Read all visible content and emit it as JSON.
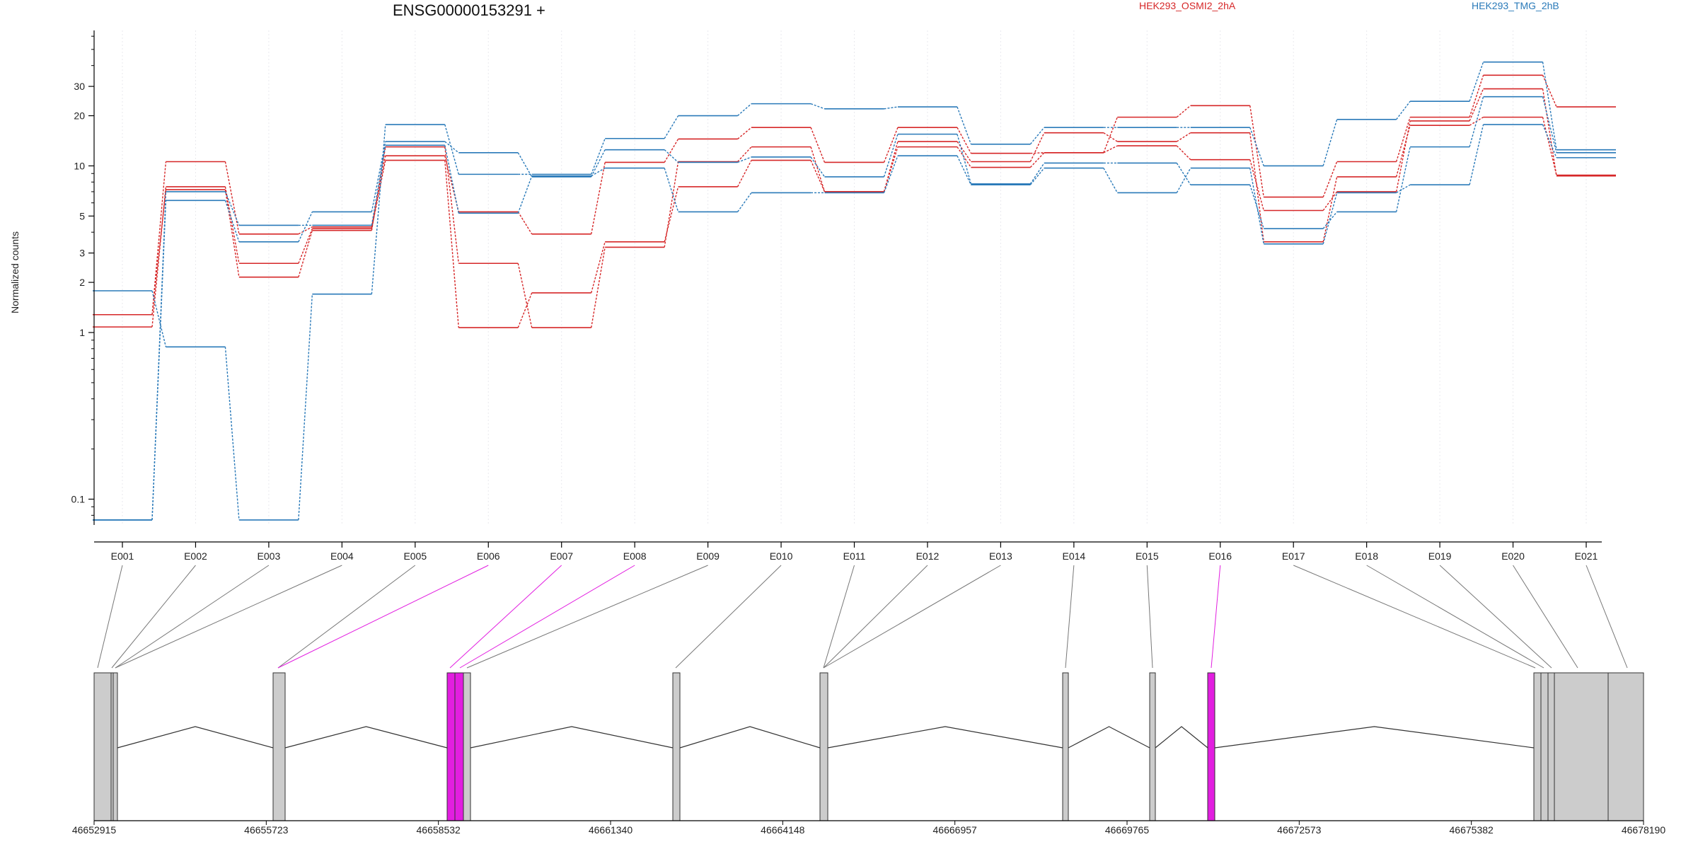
{
  "chart_data": {
    "type": "line",
    "title": "ENSG00000153291 +",
    "ylabel": "Normalized counts",
    "yscale": "log",
    "ylim": [
      0.07,
      65
    ],
    "yticks": [
      0.1,
      1,
      2,
      3,
      5,
      10,
      20,
      30
    ],
    "ytick_labels": [
      "0.1",
      "1",
      "2",
      "3",
      "5",
      "10",
      "20",
      "30"
    ],
    "categories": [
      "E001",
      "E002",
      "E003",
      "E004",
      "E005",
      "E006",
      "E007",
      "E008",
      "E009",
      "E010",
      "E011",
      "E012",
      "E013",
      "E014",
      "E015",
      "E016",
      "E017",
      "E018",
      "E019",
      "E020",
      "E021"
    ],
    "legend": [
      {
        "label": "HEK293_OSMI2_2hA",
        "color": "#d62728"
      },
      {
        "label": "HEK293_TMG_2hB",
        "color": "#2a7ab9"
      }
    ],
    "series": [
      {
        "group": "HEK293_OSMI2_2hA",
        "color": "#d62728",
        "values": [
          1.28,
          10.6,
          3.9,
          4.3,
          11.5,
          5.3,
          3.9,
          10.5,
          14.5,
          17.0,
          10.5,
          17.0,
          11.9,
          12.0,
          19.6,
          23.0,
          6.5,
          10.6,
          19.6,
          35.0,
          22.6
        ]
      },
      {
        "group": "HEK293_OSMI2_2hA",
        "color": "#d62728",
        "values": [
          1.08,
          7.5,
          2.6,
          4.2,
          10.8,
          1.07,
          1.73,
          3.5,
          7.5,
          10.8,
          7.0,
          14.0,
          10.6,
          15.8,
          14.0,
          15.8,
          3.5,
          8.6,
          17.5,
          19.6,
          8.8
        ]
      },
      {
        "group": "HEK293_OSMI2_2hA",
        "color": "#d62728",
        "values": [
          1.28,
          7.2,
          2.15,
          4.1,
          13.0,
          2.6,
          1.07,
          3.25,
          10.6,
          13.0,
          7.0,
          13.0,
          9.8,
          12.0,
          13.2,
          10.9,
          5.4,
          7.0,
          18.6,
          29.0,
          8.7
        ]
      },
      {
        "group": "HEK293_TMG_2hB",
        "color": "#2a7ab9",
        "values": [
          1.78,
          0.82,
          0.075,
          1.7,
          17.7,
          8.9,
          8.9,
          14.6,
          20.0,
          23.6,
          22.0,
          22.6,
          13.5,
          17.0,
          17.0,
          17.0,
          10.0,
          19.0,
          24.4,
          42.0,
          12.5
        ]
      },
      {
        "group": "HEK293_TMG_2hB",
        "color": "#2a7ab9",
        "values": [
          0.075,
          6.2,
          3.5,
          5.3,
          14.0,
          12.0,
          8.6,
          12.5,
          10.5,
          11.3,
          8.6,
          15.5,
          7.8,
          10.4,
          10.4,
          7.7,
          4.2,
          5.3,
          13.0,
          26.0,
          12.0
        ]
      },
      {
        "group": "HEK293_TMG_2hB",
        "color": "#2a7ab9",
        "values": [
          0.075,
          7.0,
          4.4,
          4.4,
          13.3,
          5.2,
          8.7,
          9.7,
          5.3,
          6.9,
          6.9,
          11.5,
          7.7,
          9.7,
          6.9,
          9.7,
          3.4,
          6.9,
          7.7,
          17.7,
          11.2
        ]
      }
    ],
    "gene_model": {
      "coordinate_labels": [
        "46652915",
        "46655723",
        "46658532",
        "46661340",
        "46664148",
        "46666957",
        "46669765",
        "46672573",
        "46675382",
        "46678190"
      ],
      "highlight_color": "#e21ee0",
      "exon_fill": "#cccccc",
      "highlighted_exons": [
        "E006",
        "E007",
        "E008",
        "E016"
      ]
    }
  }
}
